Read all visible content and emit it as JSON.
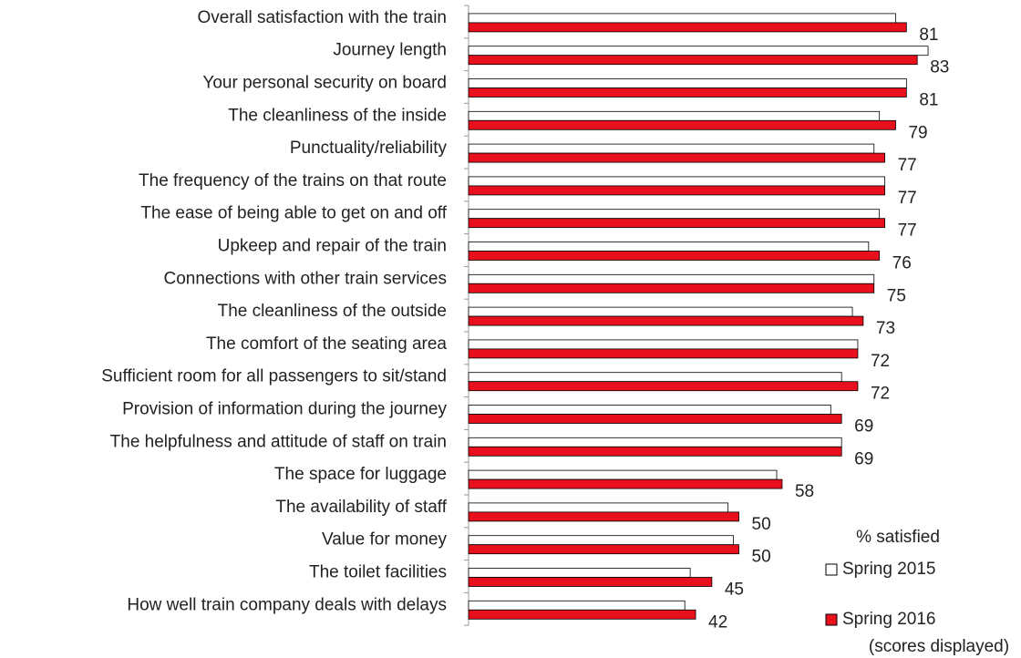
{
  "chart_data": {
    "type": "hbar",
    "categories": [
      "Overall satisfaction with the train",
      "Journey length",
      "Your personal security on board",
      "The cleanliness of the inside",
      "Punctuality/reliability",
      "The frequency of the trains on that route",
      "The ease of being able to get on and off",
      "Upkeep and repair of the train",
      "Connections with other train services",
      "The cleanliness of the outside",
      "The comfort of the seating area",
      "Sufficient room for all passengers to sit/stand",
      "Provision of information during the journey",
      "The helpfulness and attitude of staff on train",
      "The space for luggage",
      "The availability of staff",
      "Value for money",
      "The toilet facilities",
      "How well train company deals with delays"
    ],
    "series": [
      {
        "name": "Spring 2015",
        "color": "#ffffff",
        "values": [
          79,
          85,
          81,
          76,
          75,
          77,
          76,
          74,
          75,
          71,
          72,
          69,
          67,
          69,
          57,
          48,
          49,
          41,
          40
        ]
      },
      {
        "name": "Spring 2016",
        "color": "#e8101c",
        "values": [
          81,
          83,
          81,
          79,
          77,
          77,
          77,
          76,
          75,
          73,
          72,
          72,
          69,
          69,
          58,
          50,
          50,
          45,
          42
        ],
        "show_labels": true
      }
    ],
    "xlim": [
      0,
      100
    ],
    "legend_title": "% satisfied",
    "legend_note": "(scores displayed)"
  }
}
